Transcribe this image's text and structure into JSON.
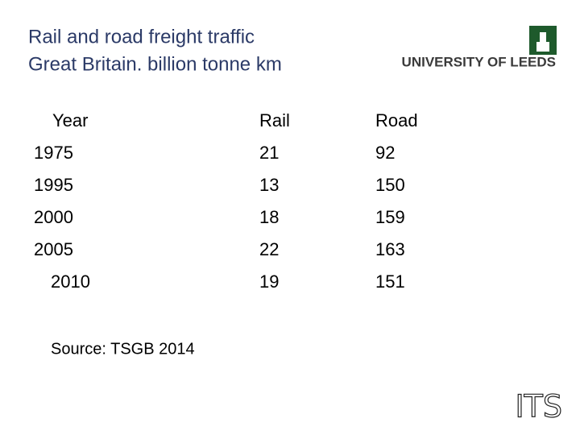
{
  "header": {
    "title_lines": [
      "Rail and road freight traffic",
      "Great Britain. billion tonne km"
    ],
    "logo": "UNIVERSITY OF LEEDS"
  },
  "table": {
    "columns": [
      "Year",
      "Rail",
      "Road"
    ],
    "rows": [
      [
        1975,
        21,
        92
      ],
      [
        1995,
        13,
        150
      ],
      [
        2000,
        18,
        159
      ],
      [
        2005,
        22,
        163
      ],
      [
        2010,
        19,
        151
      ]
    ]
  },
  "source": "Source: TSGB 2014",
  "footer_logo": "ITS"
}
